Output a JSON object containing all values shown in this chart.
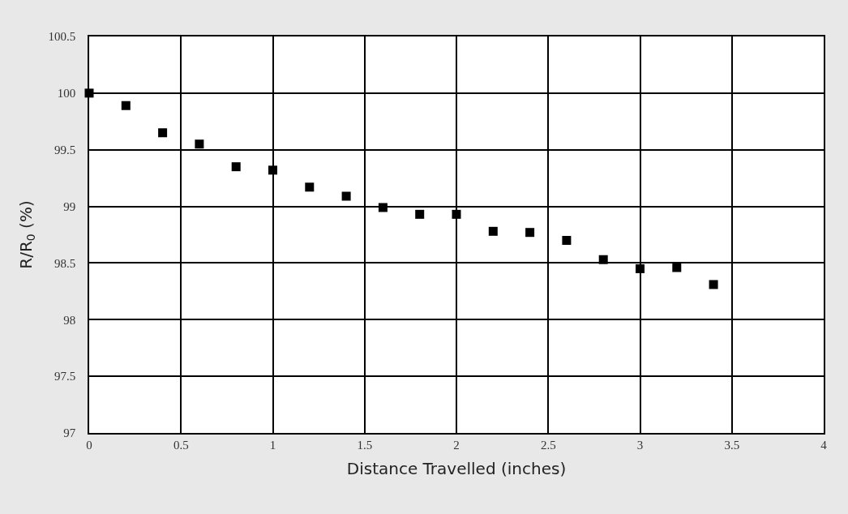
{
  "chart_data": {
    "type": "scatter",
    "xlabel": "Distance Travelled (inches)",
    "ylabel": "R/R$_{0}$ (%)",
    "x": [
      0,
      0.2,
      0.4,
      0.6,
      0.8,
      1.0,
      1.2,
      1.4,
      1.6,
      1.8,
      2.0,
      2.2,
      2.4,
      2.6,
      2.8,
      3.0,
      3.2,
      3.4
    ],
    "series": [
      {
        "color": "#000000",
        "values": [
          100,
          99.89,
          99.65,
          99.55,
          99.35,
          99.32,
          99.17,
          99.09,
          98.99,
          98.93,
          98.93,
          98.78,
          98.77,
          98.7,
          98.53,
          98.45,
          98.46,
          98.31
        ]
      }
    ],
    "xlim": [
      0,
      4
    ],
    "xticks": [
      0,
      0.5,
      1,
      1.5,
      2,
      2.5,
      3,
      3.5,
      4
    ],
    "ylim": [
      97,
      100.5
    ],
    "yticks": [
      97,
      97.5,
      98,
      98.5,
      99,
      99.5,
      100,
      100.5
    ],
    "grid": true,
    "marker": "square",
    "legend": false
  }
}
